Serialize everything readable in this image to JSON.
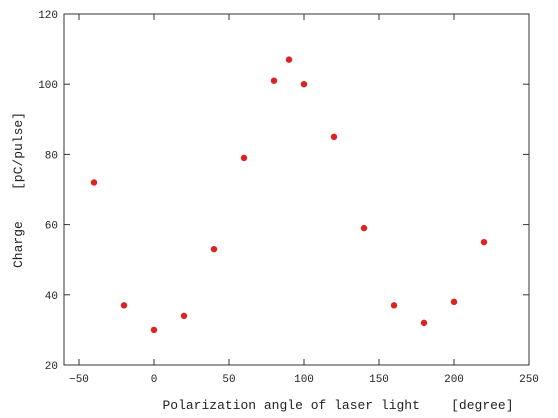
{
  "chart_data": {
    "type": "scatter",
    "x_label": "Polarization angle of laser light    [degree]",
    "y_label": "Charge    [pC/pulse]",
    "x": [
      -40,
      -20,
      0,
      20,
      40,
      60,
      80,
      90,
      100,
      120,
      140,
      160,
      180,
      200,
      220
    ],
    "values": [
      72,
      37,
      30,
      34,
      53,
      79,
      101,
      107,
      100,
      85,
      59,
      37,
      32,
      38,
      55
    ],
    "color": "#dd2222",
    "xlim": [
      -60,
      250
    ],
    "xticks": [
      {
        "value": -50,
        "label": "−50"
      },
      0,
      50,
      100,
      150,
      200,
      250
    ],
    "ylim": [
      20,
      120
    ],
    "yticks": [
      20,
      40,
      60,
      80,
      100,
      120
    ]
  }
}
